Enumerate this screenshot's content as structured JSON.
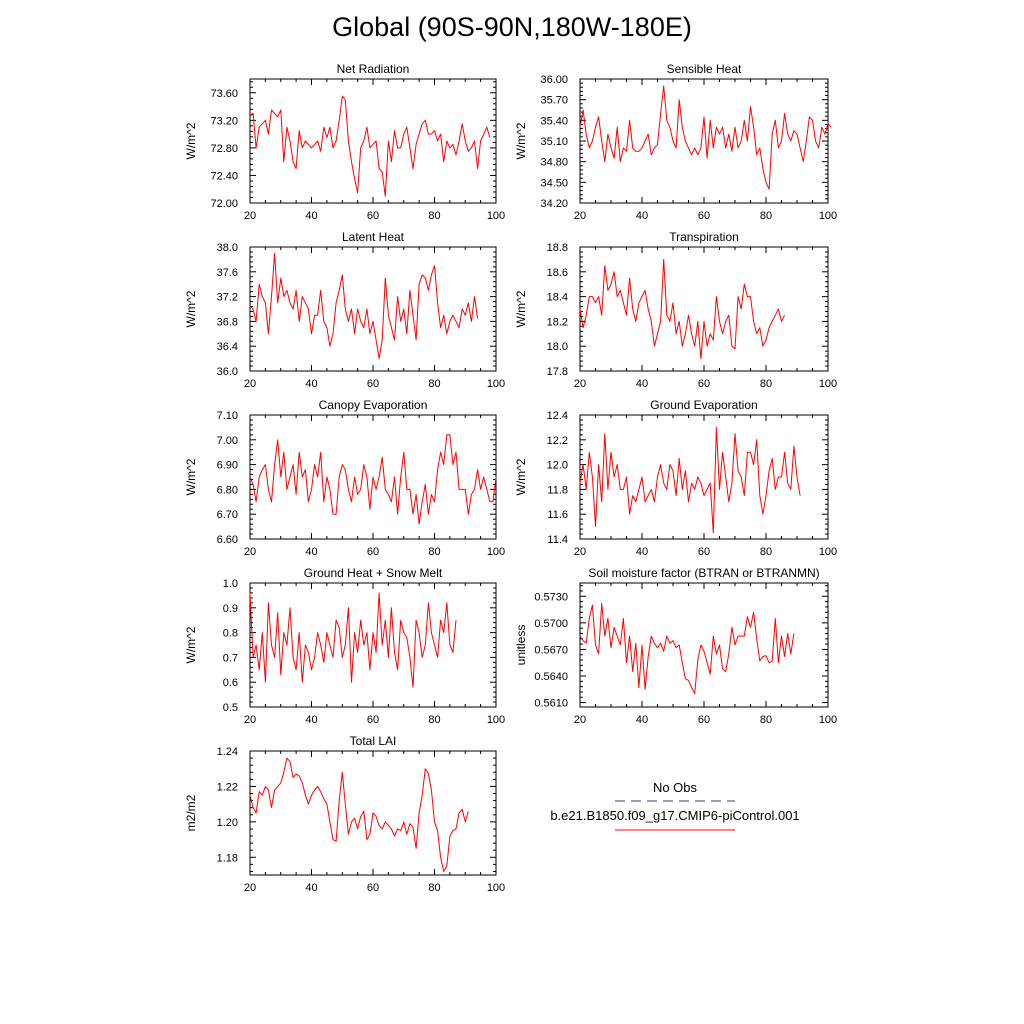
{
  "title": "Global (90S-90N,180W-180E)",
  "colors": {
    "series": "#ff0000",
    "obs": "#333399",
    "axis": "#000000"
  },
  "legend": {
    "obs_label": "No Obs",
    "model_label": "b.e21.B1850.f09_g17.CMIP6-piControl.001"
  },
  "chart_data": [
    {
      "type": "line",
      "title": "Net Radiation",
      "ylabel": "W/m^2",
      "xlim": [
        20,
        100
      ],
      "ylim": [
        72.0,
        73.8
      ],
      "xticks": [
        "20",
        "40",
        "60",
        "80",
        "100"
      ],
      "yticks": [
        "72.00",
        "72.40",
        "72.80",
        "73.20",
        "73.60"
      ],
      "x_start": 20,
      "values": [
        73.28,
        73.3,
        72.8,
        73.1,
        73.15,
        73.2,
        73.0,
        73.35,
        73.3,
        73.25,
        73.35,
        72.6,
        73.1,
        72.9,
        72.6,
        72.5,
        73.05,
        72.8,
        72.9,
        72.85,
        72.8,
        72.85,
        72.9,
        72.75,
        73.1,
        72.95,
        73.1,
        72.8,
        72.9,
        73.2,
        73.55,
        73.5,
        72.9,
        72.6,
        72.35,
        72.15,
        72.8,
        72.9,
        73.1,
        72.8,
        72.85,
        72.9,
        72.5,
        72.45,
        72.1,
        72.9,
        72.6,
        73.05,
        72.8,
        72.8,
        73.0,
        73.1,
        72.8,
        72.5,
        72.85,
        73.0,
        73.15,
        73.2,
        73.0,
        73.0,
        73.05,
        72.9,
        73.0,
        72.6,
        72.9,
        72.8,
        72.85,
        72.7,
        72.9,
        73.15,
        72.9,
        72.75,
        72.8,
        72.9,
        72.5,
        72.9,
        73.0,
        73.1,
        72.95
      ]
    },
    {
      "type": "line",
      "title": "Sensible Heat",
      "ylabel": "W/m^2",
      "xlim": [
        20,
        100
      ],
      "ylim": [
        34.2,
        36.0
      ],
      "xticks": [
        "20",
        "40",
        "60",
        "80",
        "100"
      ],
      "yticks": [
        "34.20",
        "34.50",
        "34.80",
        "35.10",
        "35.40",
        "35.70",
        "36.00"
      ],
      "x_start": 20,
      "values": [
        35.3,
        35.55,
        35.2,
        35.0,
        35.1,
        35.3,
        35.45,
        35.1,
        34.8,
        35.2,
        35.0,
        34.85,
        35.3,
        34.8,
        35.0,
        34.95,
        35.4,
        35.0,
        34.95,
        34.95,
        35.0,
        35.1,
        35.2,
        34.9,
        35.0,
        35.05,
        35.5,
        35.9,
        35.4,
        35.3,
        35.1,
        35.0,
        35.7,
        35.3,
        35.1,
        35.0,
        34.9,
        35.0,
        34.9,
        35.0,
        35.45,
        34.85,
        35.4,
        35.0,
        35.3,
        35.2,
        35.3,
        35.0,
        35.2,
        34.95,
        35.3,
        35.0,
        35.1,
        35.4,
        35.1,
        35.6,
        35.3,
        34.9,
        35.0,
        34.7,
        34.5,
        34.4,
        35.2,
        35.4,
        35.0,
        35.1,
        35.5,
        35.2,
        35.1,
        35.25,
        35.2,
        35.0,
        34.8,
        35.1,
        35.45,
        35.4,
        35.1,
        35.0,
        35.3,
        35.2,
        35.35,
        35.3
      ]
    },
    {
      "type": "line",
      "title": "Latent Heat",
      "ylabel": "W/m^2",
      "xlim": [
        20,
        100
      ],
      "ylim": [
        36.0,
        38.0
      ],
      "xticks": [
        "20",
        "40",
        "60",
        "80",
        "100"
      ],
      "yticks": [
        "36.0",
        "36.4",
        "36.8",
        "37.2",
        "37.6",
        "38.0"
      ],
      "x_start": 20,
      "values": [
        37.05,
        37.0,
        36.8,
        37.4,
        37.2,
        37.1,
        36.6,
        37.2,
        37.9,
        37.1,
        37.5,
        37.2,
        37.3,
        37.1,
        37.0,
        37.3,
        36.8,
        37.2,
        37.1,
        37.0,
        36.6,
        36.9,
        36.9,
        37.3,
        36.8,
        36.7,
        36.4,
        36.6,
        37.1,
        37.3,
        37.55,
        37.0,
        36.8,
        37.0,
        36.6,
        37.0,
        36.8,
        36.7,
        37.0,
        36.6,
        36.8,
        36.5,
        36.2,
        36.5,
        37.5,
        36.9,
        36.7,
        36.5,
        37.2,
        36.8,
        37.0,
        36.6,
        37.3,
        36.9,
        36.5,
        37.4,
        37.55,
        37.5,
        37.3,
        37.55,
        37.7,
        37.1,
        36.7,
        36.9,
        36.6,
        36.8,
        36.9,
        36.8,
        36.7,
        37.0,
        36.9,
        37.1,
        36.8,
        37.2,
        36.85
      ]
    },
    {
      "type": "line",
      "title": "Transpiration",
      "ylabel": "W/m^2",
      "xlim": [
        20,
        100
      ],
      "ylim": [
        17.8,
        18.8
      ],
      "xticks": [
        "20",
        "40",
        "60",
        "80",
        "100"
      ],
      "yticks": [
        "17.8",
        "18.0",
        "18.2",
        "18.4",
        "18.6",
        "18.8"
      ],
      "x_start": 20,
      "values": [
        18.3,
        18.15,
        18.25,
        18.4,
        18.4,
        18.35,
        18.4,
        18.25,
        18.65,
        18.45,
        18.5,
        18.6,
        18.4,
        18.45,
        18.35,
        18.25,
        18.55,
        18.3,
        18.2,
        18.35,
        18.4,
        18.45,
        18.3,
        18.2,
        18.0,
        18.1,
        18.2,
        18.7,
        18.25,
        18.2,
        18.35,
        18.1,
        18.2,
        18.0,
        18.1,
        18.25,
        18.1,
        18.0,
        18.2,
        17.9,
        18.2,
        18.0,
        18.1,
        18.05,
        18.4,
        18.2,
        18.1,
        18.2,
        18.25,
        18.0,
        17.98,
        18.4,
        18.3,
        18.5,
        18.4,
        18.4,
        18.2,
        18.1,
        18.15,
        18.0,
        18.05,
        18.15,
        18.2,
        18.25,
        18.3,
        18.2,
        18.25
      ]
    },
    {
      "type": "line",
      "title": "Canopy Evaporation",
      "ylabel": "W/m^2",
      "xlim": [
        20,
        100
      ],
      "ylim": [
        6.6,
        7.1
      ],
      "xticks": [
        "20",
        "40",
        "60",
        "80",
        "100"
      ],
      "yticks": [
        "6.60",
        "6.70",
        "6.80",
        "6.90",
        "7.00",
        "7.10"
      ],
      "x_start": 20,
      "values": [
        6.85,
        6.82,
        6.75,
        6.85,
        6.88,
        6.9,
        6.8,
        6.75,
        6.9,
        7.0,
        6.85,
        6.95,
        6.8,
        6.85,
        6.9,
        6.78,
        6.95,
        6.85,
        6.88,
        6.75,
        6.8,
        6.9,
        6.85,
        6.95,
        6.75,
        6.85,
        6.8,
        6.7,
        6.7,
        6.85,
        6.9,
        6.88,
        6.8,
        6.75,
        6.85,
        6.78,
        6.8,
        6.9,
        6.85,
        6.72,
        6.85,
        6.8,
        6.85,
        6.93,
        6.8,
        6.78,
        6.75,
        6.85,
        6.7,
        6.85,
        6.95,
        6.8,
        6.8,
        6.7,
        6.78,
        6.66,
        6.75,
        6.82,
        6.7,
        6.78,
        6.75,
        6.88,
        6.95,
        6.9,
        7.02,
        7.02,
        6.9,
        6.95,
        6.8,
        6.8,
        6.8,
        6.7,
        6.78,
        6.8,
        6.88,
        6.8,
        6.85,
        6.8,
        6.75,
        6.75,
        6.85
      ]
    },
    {
      "type": "line",
      "title": "Ground Evaporation",
      "ylabel": "W/m^2",
      "xlim": [
        20,
        100
      ],
      "ylim": [
        11.4,
        12.4
      ],
      "xticks": [
        "20",
        "40",
        "60",
        "80",
        "100"
      ],
      "yticks": [
        "11.4",
        "11.6",
        "11.8",
        "12.0",
        "12.2",
        "12.4"
      ],
      "x_start": 20,
      "values": [
        11.85,
        12.0,
        11.8,
        12.1,
        11.9,
        11.5,
        12.0,
        11.7,
        12.25,
        11.8,
        12.1,
        11.9,
        12.0,
        11.8,
        11.8,
        11.9,
        11.6,
        11.75,
        11.7,
        11.8,
        11.9,
        11.7,
        11.75,
        11.8,
        11.7,
        11.9,
        12.0,
        11.85,
        11.8,
        12.0,
        11.95,
        11.75,
        12.05,
        11.8,
        11.95,
        11.7,
        11.85,
        11.8,
        11.9,
        11.85,
        11.75,
        11.8,
        11.85,
        11.45,
        12.3,
        11.8,
        12.1,
        11.9,
        11.7,
        11.85,
        12.25,
        11.95,
        11.9,
        11.75,
        12.1,
        12.1,
        12.0,
        12.2,
        11.75,
        11.6,
        11.75,
        11.95,
        12.05,
        11.8,
        11.9,
        11.9,
        12.1,
        11.85,
        11.8,
        12.15,
        11.9,
        11.75
      ]
    },
    {
      "type": "line",
      "title": "Ground Heat + Snow Melt",
      "ylabel": "W/m^2",
      "xlim": [
        20,
        100
      ],
      "ylim": [
        0.5,
        1.0
      ],
      "xticks": [
        "20",
        "40",
        "60",
        "80",
        "100"
      ],
      "yticks": [
        "0.5",
        "0.6",
        "0.7",
        "0.8",
        "0.9",
        "1.0"
      ],
      "x_start": 20,
      "values": [
        0.96,
        0.7,
        0.75,
        0.65,
        0.8,
        0.6,
        0.92,
        0.75,
        0.7,
        0.88,
        0.63,
        0.8,
        0.75,
        0.9,
        0.7,
        0.65,
        0.8,
        0.6,
        0.75,
        0.72,
        0.65,
        0.7,
        0.8,
        0.75,
        0.68,
        0.8,
        0.75,
        0.7,
        0.85,
        0.82,
        0.7,
        0.75,
        0.9,
        0.6,
        0.8,
        0.72,
        0.85,
        0.75,
        0.8,
        0.65,
        0.8,
        0.72,
        0.96,
        0.75,
        0.85,
        0.7,
        0.9,
        0.72,
        0.65,
        0.85,
        0.8,
        0.78,
        0.7,
        0.58,
        0.85,
        0.8,
        0.7,
        0.75,
        0.92,
        0.8,
        0.75,
        0.7,
        0.85,
        0.8,
        0.92,
        0.75,
        0.72,
        0.85
      ]
    },
    {
      "type": "line",
      "title": "Soil moisture factor (BTRAN or BTRANMN)",
      "ylabel": "unitless",
      "xlim": [
        20,
        100
      ],
      "ylim": [
        0.5605,
        0.5745
      ],
      "xticks": [
        "20",
        "40",
        "60",
        "80",
        "100"
      ],
      "yticks": [
        "0.5610",
        "0.5640",
        "0.5670",
        "0.5700",
        "0.5730"
      ],
      "x_start": 20,
      "values": [
        0.5685,
        0.568,
        0.5677,
        0.5705,
        0.572,
        0.5675,
        0.5665,
        0.5722,
        0.5685,
        0.5705,
        0.5672,
        0.5695,
        0.5685,
        0.5675,
        0.5705,
        0.5655,
        0.5685,
        0.5645,
        0.5677,
        0.5627,
        0.5675,
        0.5625,
        0.5662,
        0.5685,
        0.5677,
        0.5672,
        0.5677,
        0.5668,
        0.5685,
        0.5677,
        0.568,
        0.5672,
        0.5675,
        0.5655,
        0.5637,
        0.5635,
        0.5627,
        0.562,
        0.5658,
        0.5675,
        0.5668,
        0.5655,
        0.5642,
        0.5685,
        0.5665,
        0.5675,
        0.5648,
        0.5645,
        0.5665,
        0.5695,
        0.5675,
        0.5685,
        0.5685,
        0.5685,
        0.5707,
        0.5695,
        0.5712,
        0.5682,
        0.5657,
        0.5662,
        0.5663,
        0.5655,
        0.5657,
        0.5705,
        0.5655,
        0.5685,
        0.5662,
        0.5688,
        0.5665,
        0.5688
      ]
    },
    {
      "type": "line",
      "title": "Total LAI",
      "ylabel": "m2/m2",
      "xlim": [
        20,
        100
      ],
      "ylim": [
        1.17,
        1.24
      ],
      "xticks": [
        "20",
        "40",
        "60",
        "80",
        "100"
      ],
      "yticks": [
        "1.18",
        "1.20",
        "1.22",
        "1.24"
      ],
      "x_start": 20,
      "values": [
        1.215,
        1.208,
        1.205,
        1.217,
        1.215,
        1.22,
        1.218,
        1.208,
        1.218,
        1.22,
        1.222,
        1.228,
        1.236,
        1.234,
        1.225,
        1.227,
        1.226,
        1.222,
        1.215,
        1.21,
        1.215,
        1.218,
        1.22,
        1.217,
        1.213,
        1.21,
        1.2,
        1.19,
        1.189,
        1.212,
        1.228,
        1.21,
        1.193,
        1.2,
        1.202,
        1.196,
        1.203,
        1.206,
        1.19,
        1.193,
        1.205,
        1.203,
        1.198,
        1.196,
        1.2,
        1.198,
        1.196,
        1.192,
        1.196,
        1.195,
        1.2,
        1.193,
        1.199,
        1.197,
        1.185,
        1.205,
        1.215,
        1.23,
        1.227,
        1.218,
        1.2,
        1.195,
        1.18,
        1.172,
        1.175,
        1.192,
        1.195,
        1.196,
        1.205,
        1.207,
        1.2,
        1.206
      ]
    }
  ]
}
